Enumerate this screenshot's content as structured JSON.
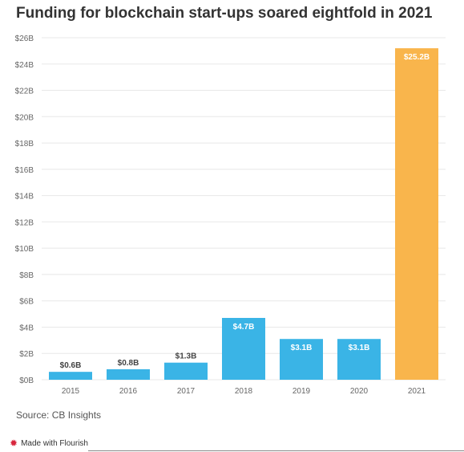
{
  "colors": {
    "bar": "#3ab4e6",
    "highlight": "#f9b54c",
    "grid": "#e8e8e8",
    "axis_text": "#666666"
  },
  "chart_data": {
    "type": "bar",
    "title": "Funding for blockchain start-ups soared eightfold in 2021",
    "categories": [
      "2015",
      "2016",
      "2017",
      "2018",
      "2019",
      "2020",
      "2021"
    ],
    "values": [
      0.6,
      0.8,
      1.3,
      4.7,
      3.1,
      3.1,
      25.2
    ],
    "data_labels": [
      "$0.6B",
      "$0.8B",
      "$1.3B",
      "$4.7B",
      "$3.1B",
      "$3.1B",
      "$25.2B"
    ],
    "highlight_index": 6,
    "ylim": [
      0,
      26
    ],
    "yticks": [
      0,
      2,
      4,
      6,
      8,
      10,
      12,
      14,
      16,
      18,
      20,
      22,
      24,
      26
    ],
    "ytick_labels": [
      "$0B",
      "$2B",
      "$4B",
      "$6B",
      "$8B",
      "$10B",
      "$12B",
      "$14B",
      "$16B",
      "$18B",
      "$20B",
      "$22B",
      "$24B",
      "$26B"
    ],
    "grid": true,
    "xlabel": "",
    "ylabel": ""
  },
  "source": "Source: CB Insights",
  "footer": {
    "flourish_icon": "flourish-star-icon",
    "flourish_label": "Made with Flourish"
  }
}
